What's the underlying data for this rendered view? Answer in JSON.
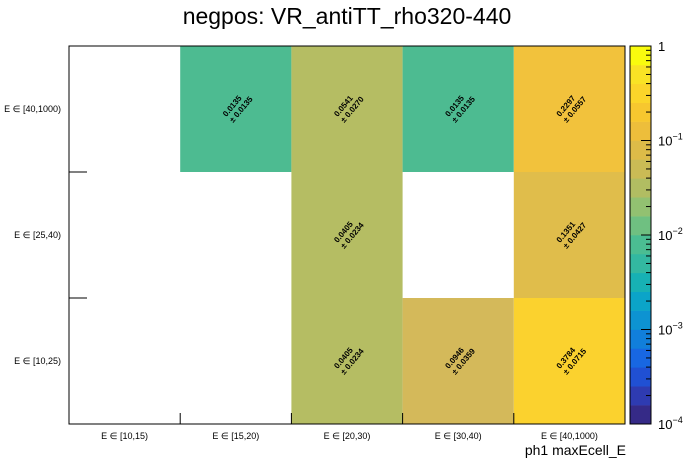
{
  "chart_data": {
    "type": "heatmap",
    "title": "negpos: VR_antiTT_rho320-440",
    "xlabel": "ph1 maxEcell_E",
    "ylabel": "",
    "x_categories": [
      "E ∈ [10,15)",
      "E ∈ [15,20)",
      "E ∈ [20,30)",
      "E ∈ [30,40)",
      "E ∈ [40,1000)"
    ],
    "y_categories": [
      "E ∈ [10,25)",
      "E ∈ [25,40)",
      "E ∈ [40,1000)"
    ],
    "z_scale": "log",
    "zlim": [
      0.0001,
      1
    ],
    "z_ticks": [
      {
        "value": 1,
        "label": "1",
        "exp": ""
      },
      {
        "value": 0.1,
        "label": "10",
        "exp": "−1"
      },
      {
        "value": 0.01,
        "label": "10",
        "exp": "−2"
      },
      {
        "value": 0.001,
        "label": "10",
        "exp": "−3"
      },
      {
        "value": 0.0001,
        "label": "10",
        "exp": "−4"
      }
    ],
    "cells": [
      {
        "x": 1,
        "y": 2,
        "value": 0.0135,
        "label": "0.0135",
        "error": "± 0.0135",
        "color": "#4dbb91"
      },
      {
        "x": 2,
        "y": 2,
        "value": 0.0541,
        "label": "0.0541",
        "error": "± 0.0270",
        "color": "#b5bd63"
      },
      {
        "x": 3,
        "y": 2,
        "value": 0.0135,
        "label": "0.0135",
        "error": "± 0.0135",
        "color": "#4dbb91"
      },
      {
        "x": 4,
        "y": 2,
        "value": 0.2297,
        "label": "0.2297",
        "error": "± 0.0557",
        "color": "#f2c23c"
      },
      {
        "x": 2,
        "y": 1,
        "value": 0.0405,
        "label": "0.0405",
        "error": "± 0.0234",
        "color": "#b5bd63"
      },
      {
        "x": 4,
        "y": 1,
        "value": 0.1351,
        "label": "0.1351",
        "error": "± 0.0427",
        "color": "#e0bd4b"
      },
      {
        "x": 2,
        "y": 0,
        "value": 0.0405,
        "label": "0.0405",
        "error": "± 0.0234",
        "color": "#b5bd63"
      },
      {
        "x": 3,
        "y": 0,
        "value": 0.0946,
        "label": "0.0946",
        "error": "± 0.0359",
        "color": "#d4b95a"
      },
      {
        "x": 4,
        "y": 0,
        "value": 0.3784,
        "label": "0.3784",
        "error": "± 0.0715",
        "color": "#fbd22e"
      }
    ],
    "palette": [
      "#352a87",
      "#2e3bb1",
      "#2050d3",
      "#1867e2",
      "#117fdb",
      "#0d93d2",
      "#0ba4c8",
      "#17b1b4",
      "#33b8a1",
      "#4bbd92",
      "#6fc081",
      "#92c171",
      "#b1bd62",
      "#cabb55",
      "#ddbb48",
      "#edbe3b",
      "#f7c72f",
      "#fbd52a",
      "#f9e325",
      "#f9fb0e"
    ]
  }
}
